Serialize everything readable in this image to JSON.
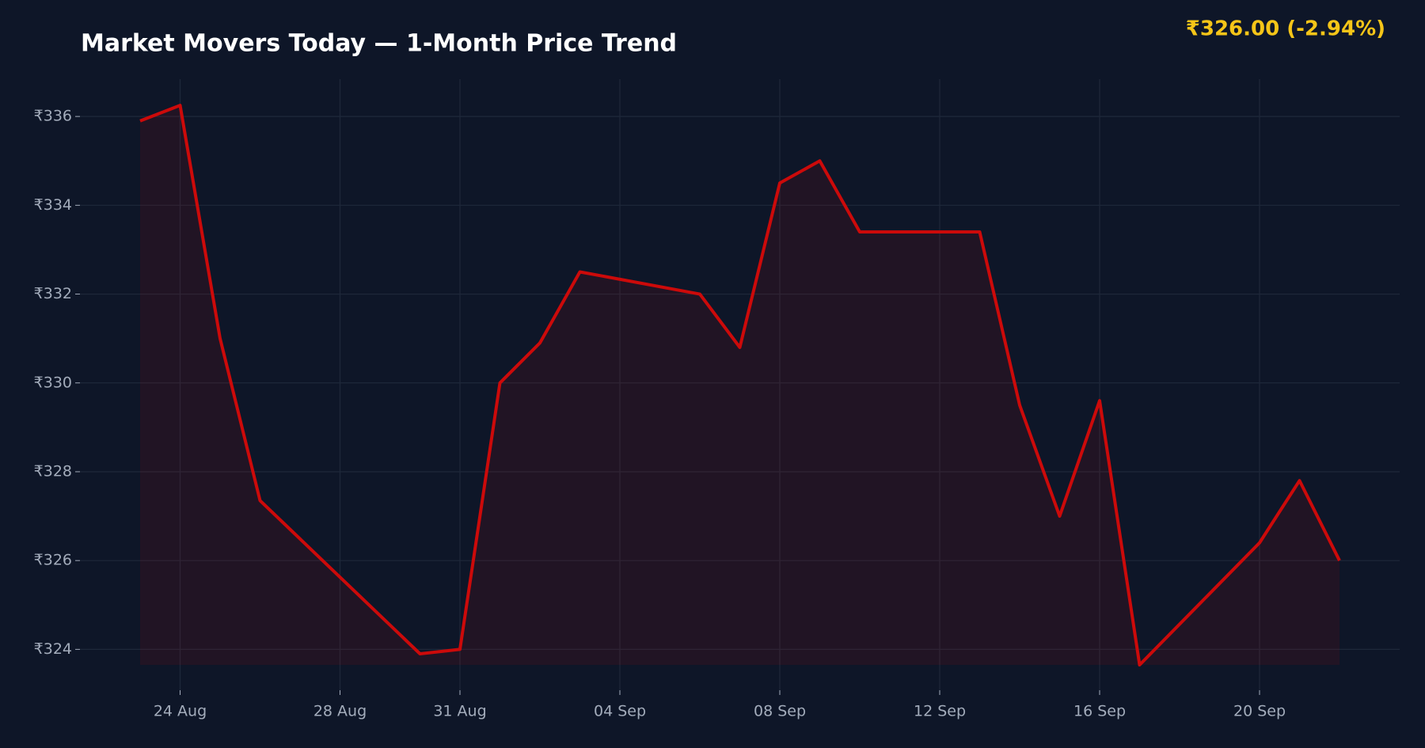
{
  "chart_data": {
    "type": "line",
    "title": "Market Movers Today — 1-Month Price Trend",
    "price_label": "₹326.00  (-2.94%)",
    "x": [
      "23 Aug",
      "24 Aug",
      "25 Aug",
      "26 Aug",
      "30 Aug",
      "31 Aug",
      "1 Sep",
      "2 Sep",
      "3 Sep",
      "6 Sep",
      "7 Sep",
      "8 Sep",
      "9 Sep",
      "10 Sep",
      "13 Sep",
      "14 Sep",
      "15 Sep",
      "16 Sep",
      "17 Sep",
      "20 Sep",
      "21 Sep",
      "22 Sep"
    ],
    "series": [
      {
        "color": "#cc0a0a",
        "values": [
          335.9,
          336.25,
          331.0,
          327.35,
          323.9,
          324.0,
          330.0,
          330.9,
          332.5,
          332.0,
          330.8,
          334.5,
          335.0,
          333.4,
          333.4,
          329.5,
          327.0,
          329.6,
          323.65,
          326.4,
          327.8,
          326.0
        ]
      }
    ],
    "xlim": [
      "21 Aug",
      "24 Sep"
    ],
    "xticks": [
      "24 Aug",
      "28 Aug",
      "31 Aug",
      "04 Sep",
      "08 Sep",
      "12 Sep",
      "16 Sep",
      "20 Sep"
    ],
    "ylim": [
      323.08,
      336.84
    ],
    "yticks": [
      {
        "value": 324,
        "label": "₹324"
      },
      {
        "value": 326,
        "label": "₹326"
      },
      {
        "value": 328,
        "label": "₹328"
      },
      {
        "value": 330,
        "label": "₹330"
      },
      {
        "value": 332,
        "label": "₹332"
      },
      {
        "value": 334,
        "label": "₹334"
      },
      {
        "value": 336,
        "label": "₹336"
      }
    ],
    "grid": true,
    "fill": true
  }
}
